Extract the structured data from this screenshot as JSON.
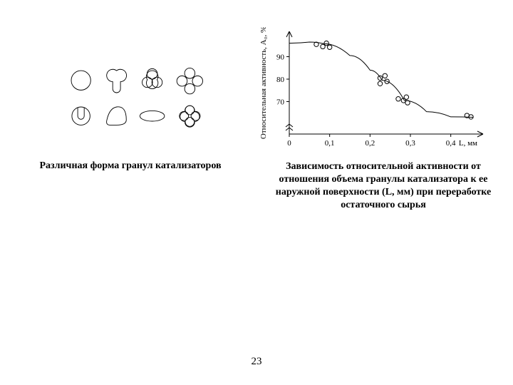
{
  "page_number": "23",
  "left": {
    "caption": "Различная форма гранул катализаторов",
    "shapes": {
      "stroke": "#000000",
      "stroke_width": 1,
      "fill": "none"
    }
  },
  "right": {
    "caption": "Зависимость относительной активности от отношения объема гранулы катализатора к ее наружной поверхности (L, мм) при переработке остаточного сырья"
  },
  "chart": {
    "type": "scatter-line",
    "background_color": "#ffffff",
    "axis_color": "#000000",
    "axis_width": 1,
    "xlim": [
      0,
      0.48
    ],
    "ylim_bottom_break": 60,
    "ylim_top": 100,
    "xticks": [
      0,
      0.1,
      0.2,
      0.3,
      0.4
    ],
    "xtick_labels": [
      "0",
      "0,1",
      "0,2",
      "0,3",
      "0,4"
    ],
    "yticks": [
      70,
      80,
      90
    ],
    "xlabel": "L, мм",
    "ylabel": "Относительная активность, A₀, %",
    "label_fontsize": 11,
    "tick_fontsize": 11,
    "marker": {
      "shape": "circle",
      "size": 3.2,
      "fill": "none",
      "stroke": "#000000",
      "stroke_width": 1
    },
    "points": [
      {
        "x": 0.067,
        "y": 95.5
      },
      {
        "x": 0.083,
        "y": 94.5
      },
      {
        "x": 0.092,
        "y": 96.0
      },
      {
        "x": 0.1,
        "y": 94.2
      },
      {
        "x": 0.225,
        "y": 80.5
      },
      {
        "x": 0.225,
        "y": 78.0
      },
      {
        "x": 0.237,
        "y": 81.5
      },
      {
        "x": 0.242,
        "y": 79.0
      },
      {
        "x": 0.27,
        "y": 71.2
      },
      {
        "x": 0.283,
        "y": 70.5
      },
      {
        "x": 0.29,
        "y": 72.0
      },
      {
        "x": 0.293,
        "y": 69.5
      },
      {
        "x": 0.45,
        "y": 63.2
      },
      {
        "x": 0.44,
        "y": 63.8
      }
    ],
    "curve": [
      {
        "x": 0.0,
        "y": 96.0
      },
      {
        "x": 0.05,
        "y": 96.5
      },
      {
        "x": 0.085,
        "y": 95.8
      },
      {
        "x": 0.15,
        "y": 90.5
      },
      {
        "x": 0.2,
        "y": 84.0
      },
      {
        "x": 0.23,
        "y": 79.5
      },
      {
        "x": 0.285,
        "y": 70.5
      },
      {
        "x": 0.34,
        "y": 65.5
      },
      {
        "x": 0.4,
        "y": 63.2
      },
      {
        "x": 0.455,
        "y": 63.0
      }
    ]
  }
}
